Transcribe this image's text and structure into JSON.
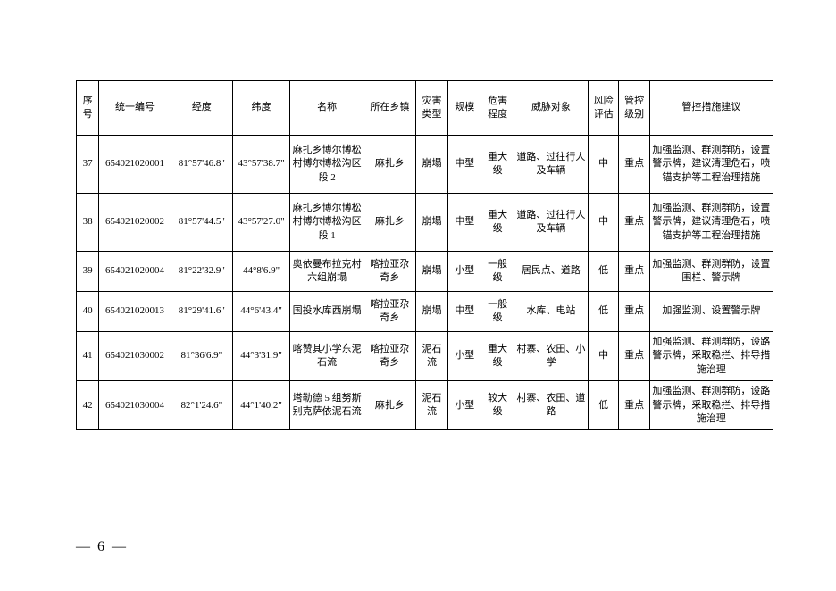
{
  "headers": {
    "seq": "序号",
    "code": "统一编号",
    "lon": "经度",
    "lat": "纬度",
    "name": "名称",
    "town": "所在乡镇",
    "type": "灾害类型",
    "scale": "规模",
    "degree": "危害程度",
    "threat": "威胁对象",
    "risk": "风险评估",
    "level": "管控级别",
    "suggest": "管控措施建议"
  },
  "rows": [
    {
      "seq": "37",
      "code": "654021020001",
      "lon": "81°57'46.8\"",
      "lat": "43°57'38.7\"",
      "name": "麻扎乡博尔博松村博尔博松沟区段 2",
      "town": "麻扎乡",
      "type": "崩塌",
      "scale": "中型",
      "degree": "重大级",
      "threat": "道路、过往行人及车辆",
      "risk": "中",
      "level": "重点",
      "suggest": "加强监测、群测群防，设置警示牌，建议清理危石，喷锚支护等工程治理措施"
    },
    {
      "seq": "38",
      "code": "654021020002",
      "lon": "81°57'44.5\"",
      "lat": "43°57'27.0\"",
      "name": "麻扎乡博尔博松村博尔博松沟区段 1",
      "town": "麻扎乡",
      "type": "崩塌",
      "scale": "中型",
      "degree": "重大级",
      "threat": "道路、过往行人及车辆",
      "risk": "中",
      "level": "重点",
      "suggest": "加强监测、群测群防，设置警示牌，建议清理危石，喷锚支护等工程治理措施"
    },
    {
      "seq": "39",
      "code": "654021020004",
      "lon": "81°22'32.9\"",
      "lat": "44°8'6.9\"",
      "name": "奥依曼布拉克村六组崩塌",
      "town": "喀拉亚尕奇乡",
      "type": "崩塌",
      "scale": "小型",
      "degree": "一般级",
      "threat": "居民点、道路",
      "risk": "低",
      "level": "重点",
      "suggest": "加强监测、群测群防，设置围栏、警示牌"
    },
    {
      "seq": "40",
      "code": "654021020013",
      "lon": "81°29'41.6\"",
      "lat": "44°6'43.4\"",
      "name": "国投水库西崩塌",
      "town": "喀拉亚尕奇乡",
      "type": "崩塌",
      "scale": "中型",
      "degree": "一般级",
      "threat": "水库、电站",
      "risk": "低",
      "level": "重点",
      "suggest": "加强监测、设置警示牌"
    },
    {
      "seq": "41",
      "code": "654021030002",
      "lon": "81°36'6.9\"",
      "lat": "44°3'31.9\"",
      "name": "喀赞其小学东泥石流",
      "town": "喀拉亚尕奇乡",
      "type": "泥石流",
      "scale": "小型",
      "degree": "重大级",
      "threat": "村寨、农田、小学",
      "risk": "中",
      "level": "重点",
      "suggest": "加强监测、群测群防，设路警示牌，采取稳拦、排导措施治理"
    },
    {
      "seq": "42",
      "code": "654021030004",
      "lon": "82°1'24.6\"",
      "lat": "44°1'40.2\"",
      "name": "塔勒德 5 组努斯别克萨依泥石流",
      "town": "麻扎乡",
      "type": "泥石流",
      "scale": "小型",
      "degree": "较大级",
      "threat": "村寨、农田、道路",
      "risk": "低",
      "level": "重点",
      "suggest": "加强监测、群测群防，设路警示牌，采取稳拦、排导措施治理"
    }
  ],
  "pageNumber": "— 6 —"
}
